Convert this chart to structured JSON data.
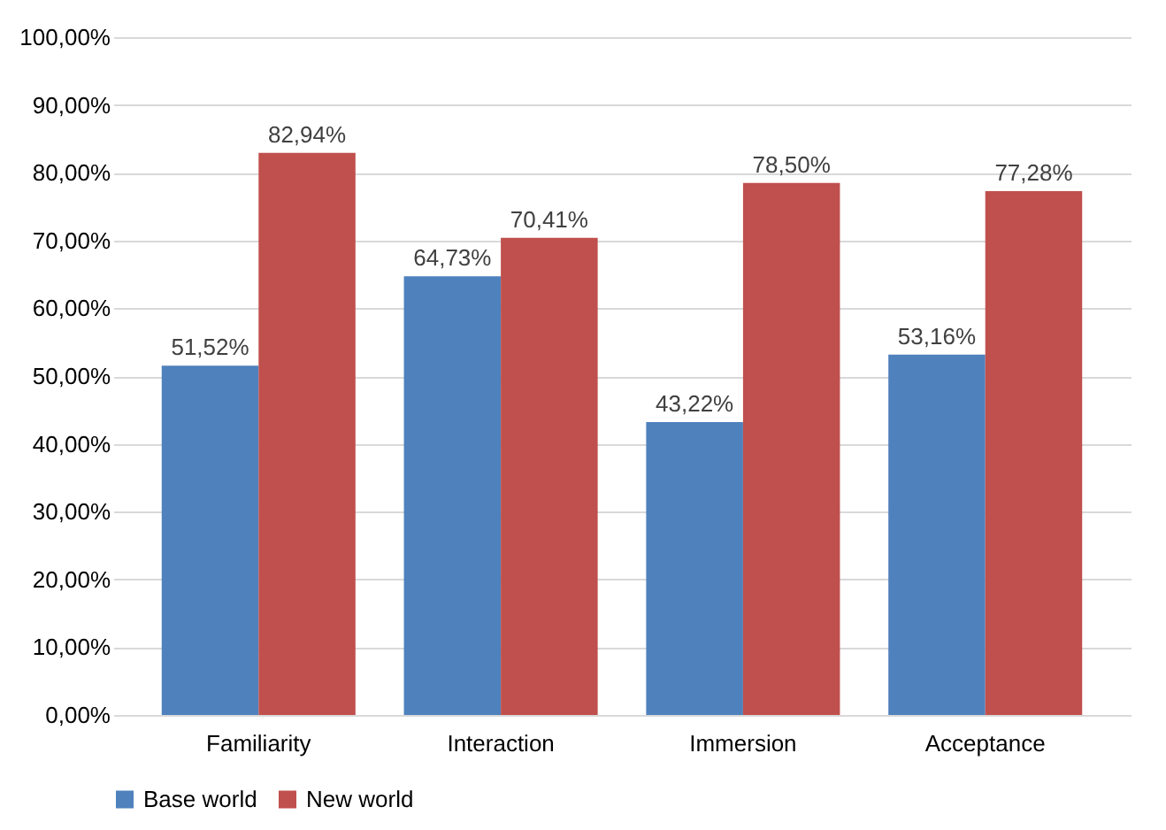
{
  "chart_data": {
    "type": "bar",
    "categories": [
      "Familiarity",
      "Interaction",
      "Immersion",
      "Acceptance"
    ],
    "series": [
      {
        "name": "Base world",
        "color": "#4f81bd",
        "values": [
          51.52,
          64.73,
          43.22,
          53.16
        ],
        "value_labels": [
          "51,52%",
          "64,73%",
          "43,22%",
          "53,16%"
        ]
      },
      {
        "name": "New world",
        "color": "#c0504d",
        "values": [
          82.94,
          70.41,
          78.5,
          77.28
        ],
        "value_labels": [
          "82,94%",
          "70,41%",
          "78,50%",
          "77,28%"
        ]
      }
    ],
    "ylim": [
      0,
      100
    ],
    "yticks": [
      {
        "value": 0,
        "label": "0,00%"
      },
      {
        "value": 10,
        "label": "10,00%"
      },
      {
        "value": 20,
        "label": "20,00%"
      },
      {
        "value": 30,
        "label": "30,00%"
      },
      {
        "value": 40,
        "label": "40,00%"
      },
      {
        "value": 50,
        "label": "50,00%"
      },
      {
        "value": 60,
        "label": "60,00%"
      },
      {
        "value": 70,
        "label": "70,00%"
      },
      {
        "value": 80,
        "label": "80,00%"
      },
      {
        "value": 90,
        "label": "90,00%"
      },
      {
        "value": 100,
        "label": "100,00%"
      }
    ],
    "grid": "y",
    "legend": "bottom"
  }
}
